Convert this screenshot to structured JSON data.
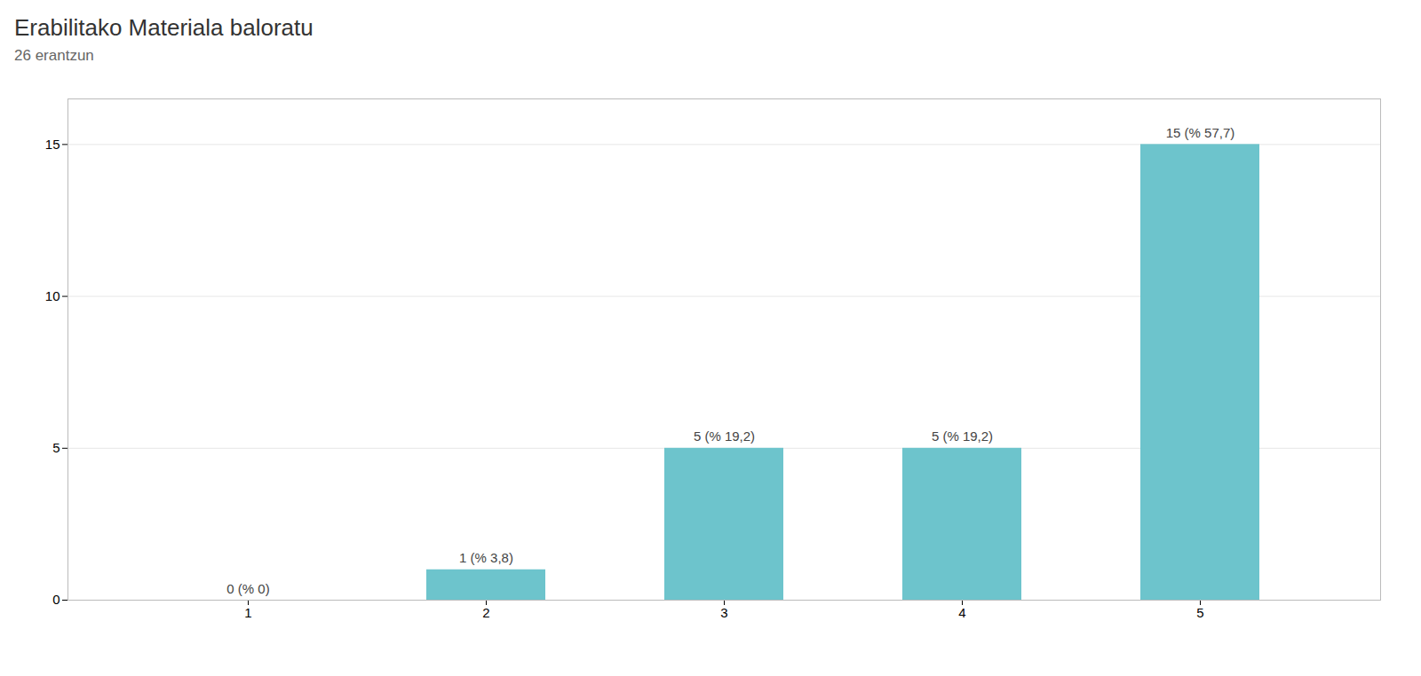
{
  "chart_data": {
    "type": "bar",
    "title": "Erabilitako Materiala baloratu",
    "subtitle": "26 erantzun",
    "categories": [
      1,
      2,
      3,
      4,
      5
    ],
    "values": [
      0,
      1,
      5,
      5,
      15
    ],
    "value_labels": [
      "0 (% 0)",
      "1 (% 3,8)",
      "5 (% 19,2)",
      "5 (% 19,2)",
      "15 (% 57,7)"
    ],
    "data_labels": true,
    "colors": [
      "#c0c0c0",
      "#6dc4cc",
      "#6dc4cc",
      "#6dc4cc",
      "#6dc4cc"
    ],
    "ylim": [
      0,
      16.5
    ],
    "yticks": [
      0,
      5,
      10,
      15
    ],
    "grid": true
  }
}
